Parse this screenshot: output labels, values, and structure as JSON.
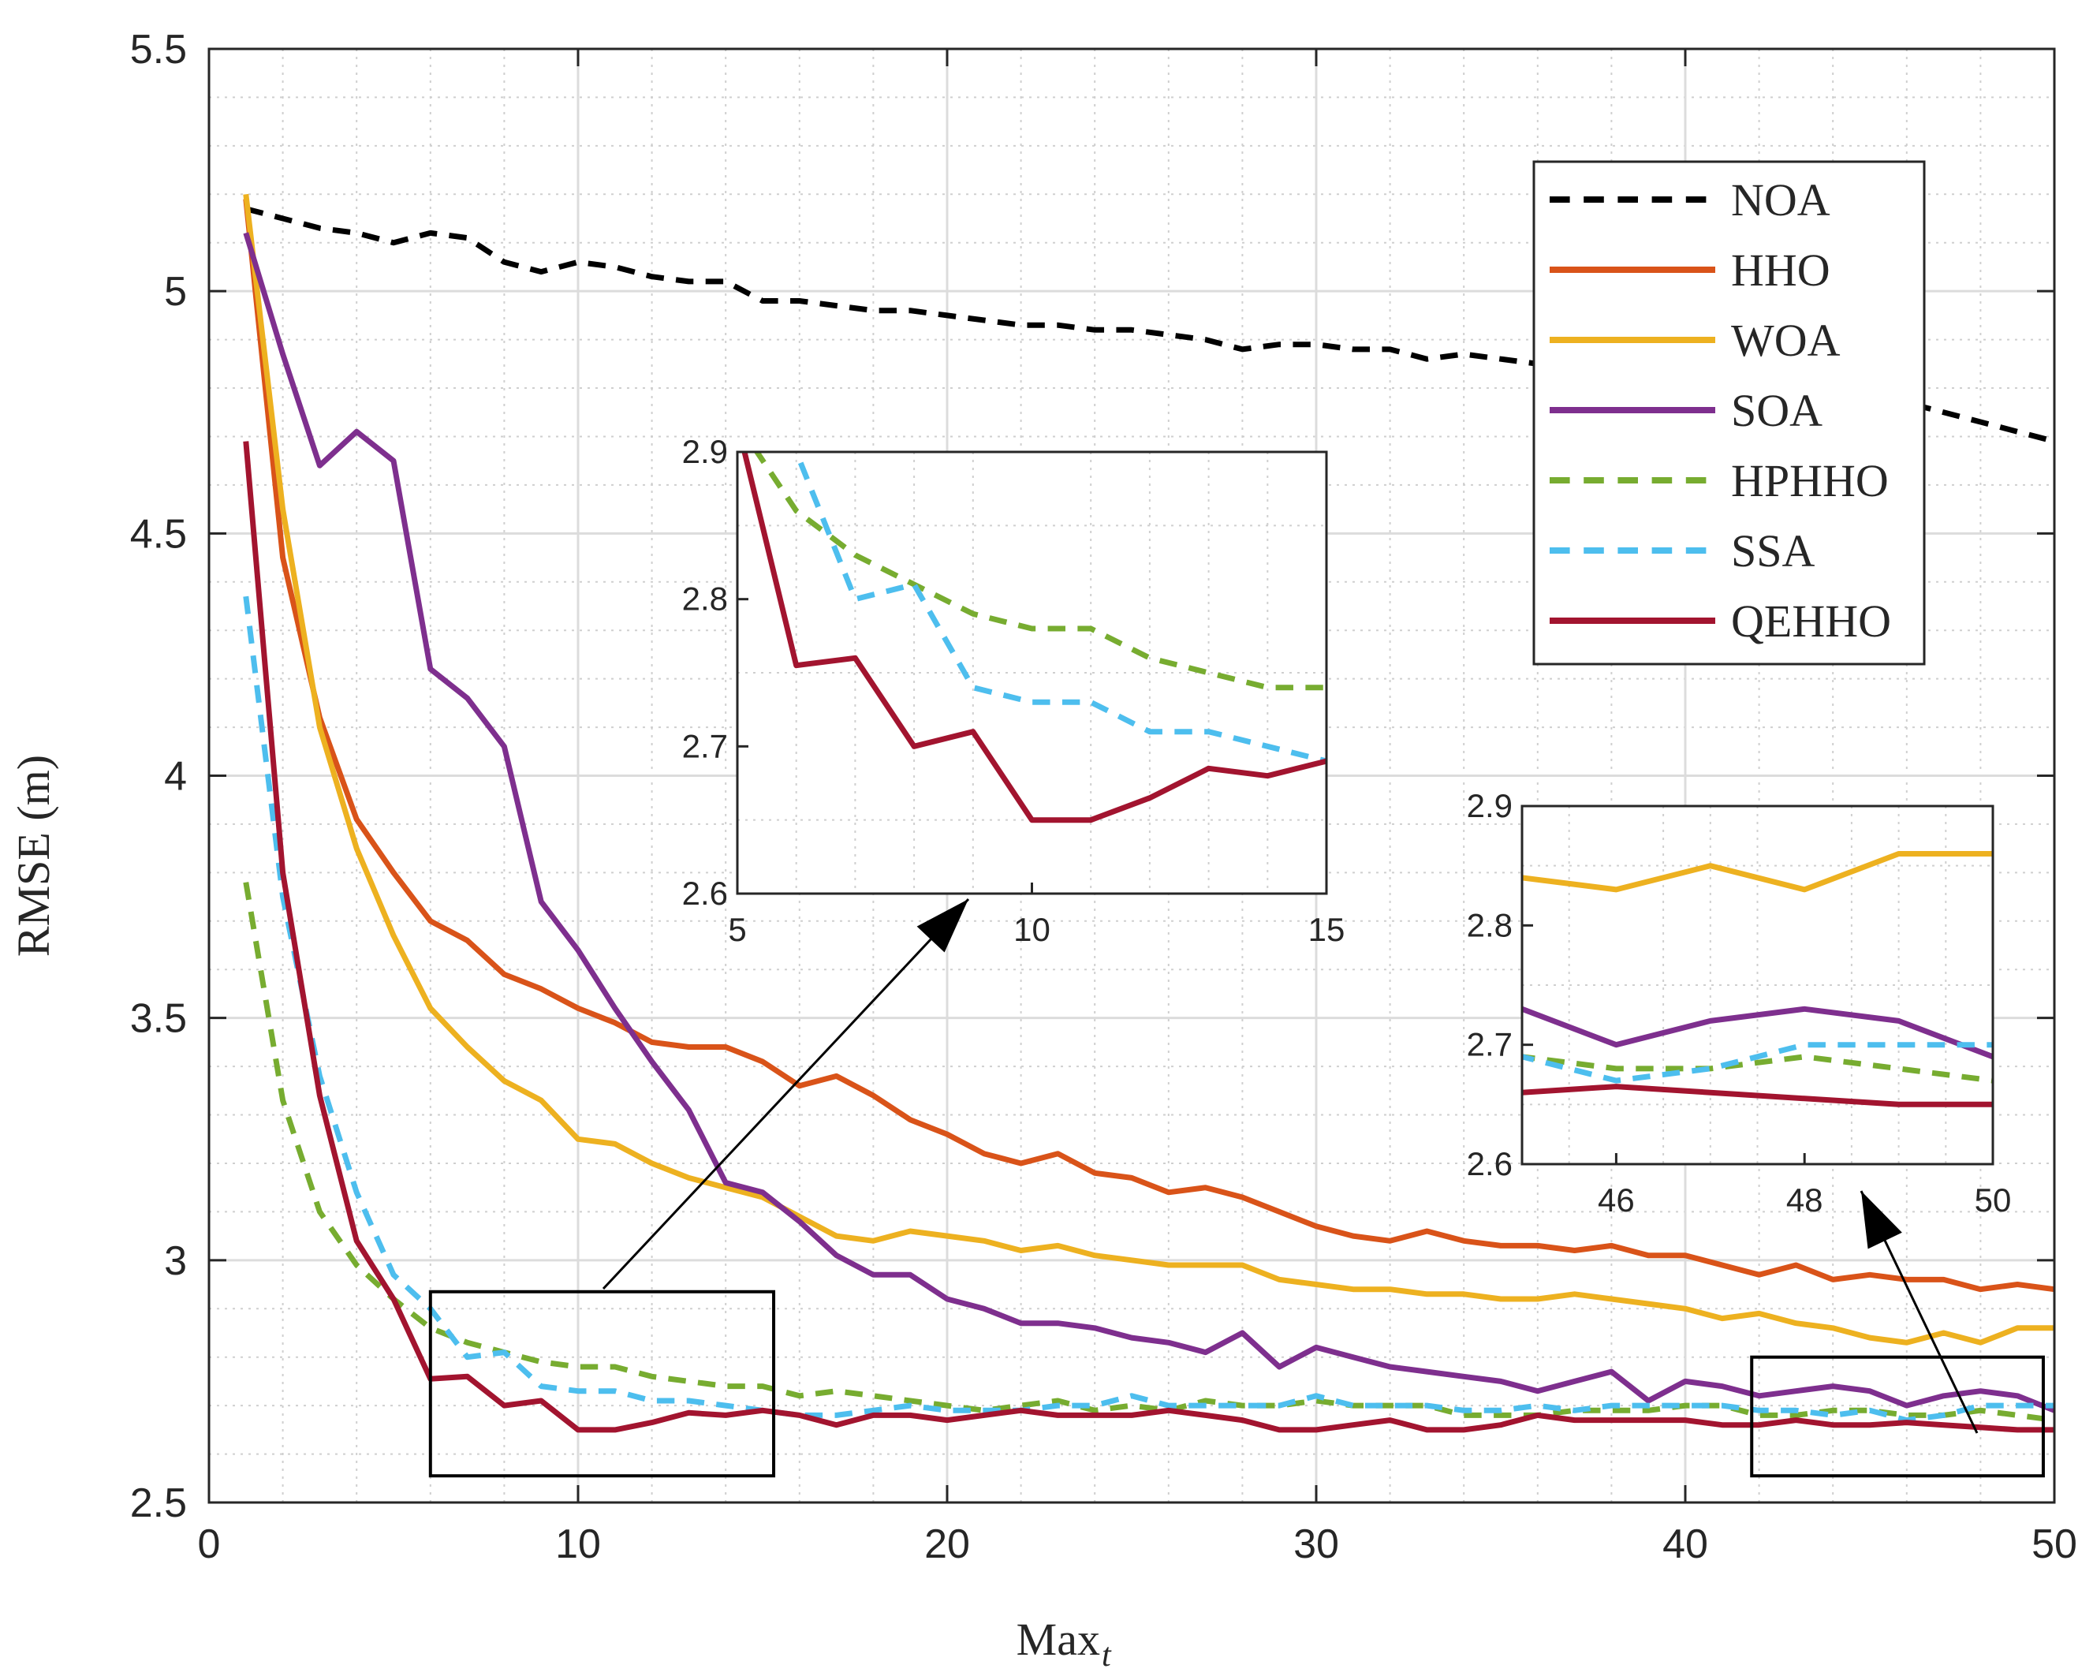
{
  "chart_data": {
    "type": "line",
    "title": "",
    "xlabel": "Max",
    "xlabel_sub": "t",
    "ylabel": "RMSE (m)",
    "xlim": [
      0,
      50
    ],
    "ylim": [
      2.5,
      5.5
    ],
    "xticks": [
      0,
      10,
      20,
      30,
      40,
      50
    ],
    "yticks": [
      2.5,
      3,
      3.5,
      4,
      4.5,
      5,
      5.5
    ],
    "xtick_labels": [
      "0",
      "10",
      "20",
      "30",
      "40",
      "50"
    ],
    "ytick_labels": [
      "2.5",
      "3",
      "3.5",
      "4",
      "4.5",
      "5",
      "5.5"
    ],
    "grid": true,
    "minor_grid": true,
    "legend_position": "top-right",
    "x": [
      1,
      2,
      3,
      4,
      5,
      6,
      7,
      8,
      9,
      10,
      11,
      12,
      13,
      14,
      15,
      16,
      17,
      18,
      19,
      20,
      21,
      22,
      23,
      24,
      25,
      26,
      27,
      28,
      29,
      30,
      31,
      32,
      33,
      34,
      35,
      36,
      37,
      38,
      39,
      40,
      41,
      42,
      43,
      44,
      45,
      46,
      47,
      48,
      49,
      50
    ],
    "series": [
      {
        "name": "NOA",
        "color": "#000000",
        "dash": "dashed",
        "values": [
          5.17,
          5.15,
          5.13,
          5.12,
          5.1,
          5.12,
          5.11,
          5.06,
          5.04,
          5.06,
          5.05,
          5.03,
          5.02,
          5.02,
          4.98,
          4.98,
          4.97,
          4.96,
          4.96,
          4.95,
          4.94,
          4.93,
          4.93,
          4.92,
          4.92,
          4.91,
          4.9,
          4.88,
          4.89,
          4.89,
          4.88,
          4.88,
          4.86,
          4.87,
          4.86,
          4.85,
          4.84,
          4.84,
          4.83,
          4.82,
          4.81,
          4.8,
          4.8,
          4.79,
          4.78,
          4.77,
          4.75,
          4.73,
          4.71,
          4.69
        ]
      },
      {
        "name": "HHO",
        "color": "#D95319",
        "dash": "solid",
        "values": [
          5.19,
          4.45,
          4.12,
          3.91,
          3.8,
          3.7,
          3.66,
          3.59,
          3.56,
          3.52,
          3.49,
          3.45,
          3.44,
          3.44,
          3.41,
          3.36,
          3.38,
          3.34,
          3.29,
          3.26,
          3.22,
          3.2,
          3.22,
          3.18,
          3.17,
          3.14,
          3.15,
          3.13,
          3.1,
          3.07,
          3.05,
          3.04,
          3.06,
          3.04,
          3.03,
          3.03,
          3.02,
          3.03,
          3.01,
          3.01,
          2.99,
          2.97,
          2.99,
          2.96,
          2.97,
          2.96,
          2.96,
          2.94,
          2.95,
          2.94
        ]
      },
      {
        "name": "WOA",
        "color": "#EDB120",
        "dash": "solid",
        "values": [
          5.2,
          4.55,
          4.1,
          3.85,
          3.67,
          3.52,
          3.44,
          3.37,
          3.33,
          3.25,
          3.24,
          3.2,
          3.17,
          3.15,
          3.13,
          3.09,
          3.05,
          3.04,
          3.06,
          3.05,
          3.04,
          3.02,
          3.03,
          3.01,
          3.0,
          2.99,
          2.99,
          2.99,
          2.96,
          2.95,
          2.94,
          2.94,
          2.93,
          2.93,
          2.92,
          2.92,
          2.93,
          2.92,
          2.91,
          2.9,
          2.88,
          2.89,
          2.87,
          2.86,
          2.84,
          2.83,
          2.85,
          2.83,
          2.86,
          2.86
        ]
      },
      {
        "name": "SOA",
        "color": "#7E2F8E",
        "dash": "solid",
        "values": [
          5.12,
          4.87,
          4.64,
          4.71,
          4.65,
          4.22,
          4.16,
          4.06,
          3.74,
          3.64,
          3.52,
          3.41,
          3.31,
          3.16,
          3.14,
          3.08,
          3.01,
          2.97,
          2.97,
          2.92,
          2.9,
          2.87,
          2.87,
          2.86,
          2.84,
          2.83,
          2.81,
          2.85,
          2.78,
          2.82,
          2.8,
          2.78,
          2.77,
          2.76,
          2.75,
          2.73,
          2.75,
          2.77,
          2.71,
          2.75,
          2.74,
          2.72,
          2.73,
          2.74,
          2.73,
          2.7,
          2.72,
          2.73,
          2.72,
          2.69
        ]
      },
      {
        "name": "HPHHO",
        "color": "#77AC30",
        "dash": "dashed",
        "values": [
          3.78,
          3.33,
          3.1,
          2.99,
          2.92,
          2.86,
          2.83,
          2.81,
          2.79,
          2.78,
          2.78,
          2.76,
          2.75,
          2.74,
          2.74,
          2.72,
          2.73,
          2.72,
          2.71,
          2.7,
          2.69,
          2.7,
          2.71,
          2.69,
          2.7,
          2.69,
          2.71,
          2.7,
          2.7,
          2.71,
          2.7,
          2.7,
          2.7,
          2.68,
          2.68,
          2.68,
          2.69,
          2.69,
          2.69,
          2.7,
          2.7,
          2.68,
          2.68,
          2.69,
          2.69,
          2.68,
          2.68,
          2.69,
          2.68,
          2.67
        ]
      },
      {
        "name": "SSA",
        "color": "#4DBEEE",
        "dash": "dashed",
        "values": [
          4.37,
          3.75,
          3.38,
          3.14,
          2.97,
          2.9,
          2.8,
          2.81,
          2.74,
          2.73,
          2.73,
          2.71,
          2.71,
          2.7,
          2.69,
          2.68,
          2.68,
          2.69,
          2.7,
          2.69,
          2.69,
          2.69,
          2.7,
          2.7,
          2.72,
          2.7,
          2.7,
          2.7,
          2.7,
          2.72,
          2.7,
          2.7,
          2.7,
          2.69,
          2.69,
          2.7,
          2.69,
          2.7,
          2.7,
          2.7,
          2.7,
          2.69,
          2.69,
          2.68,
          2.69,
          2.67,
          2.68,
          2.7,
          2.7,
          2.7
        ]
      },
      {
        "name": "QEHHO",
        "color": "#A2142F",
        "dash": "solid",
        "values": [
          4.69,
          3.8,
          3.34,
          3.04,
          2.92,
          2.755,
          2.76,
          2.7,
          2.71,
          2.65,
          2.65,
          2.665,
          2.685,
          2.68,
          2.69,
          2.68,
          2.66,
          2.68,
          2.68,
          2.67,
          2.68,
          2.69,
          2.68,
          2.68,
          2.68,
          2.69,
          2.68,
          2.67,
          2.65,
          2.65,
          2.66,
          2.67,
          2.65,
          2.65,
          2.66,
          2.68,
          2.67,
          2.67,
          2.67,
          2.67,
          2.66,
          2.66,
          2.67,
          2.66,
          2.66,
          2.665,
          2.66,
          2.655,
          2.65,
          2.65
        ]
      }
    ],
    "insets": [
      {
        "name": "inset-early",
        "xlim": [
          5,
          15
        ],
        "ylim": [
          2.6,
          2.9
        ],
        "xticks": [
          5,
          10,
          15
        ],
        "yticks": [
          2.6,
          2.7,
          2.8,
          2.9
        ],
        "xtick_labels": [
          "5",
          "10",
          "15"
        ],
        "ytick_labels": [
          "2.6",
          "2.7",
          "2.8",
          "2.9"
        ],
        "series": [
          "HPHHO",
          "SSA",
          "QEHHO"
        ],
        "source_box": {
          "x": [
            6,
            15.3
          ],
          "y": [
            2.555,
            2.935
          ]
        }
      },
      {
        "name": "inset-late",
        "xlim": [
          45,
          50
        ],
        "ylim": [
          2.6,
          2.9
        ],
        "xticks": [
          46,
          48,
          50
        ],
        "yticks": [
          2.6,
          2.7,
          2.8,
          2.9
        ],
        "xtick_labels": [
          "46",
          "48",
          "50"
        ],
        "ytick_labels": [
          "2.6",
          "2.7",
          "2.8",
          "2.9"
        ],
        "series": [
          "WOA",
          "SOA",
          "HPHHO",
          "SSA",
          "QEHHO"
        ],
        "source_box": {
          "x": [
            41.8,
            49.7
          ],
          "y": [
            2.555,
            2.8
          ]
        }
      }
    ]
  }
}
